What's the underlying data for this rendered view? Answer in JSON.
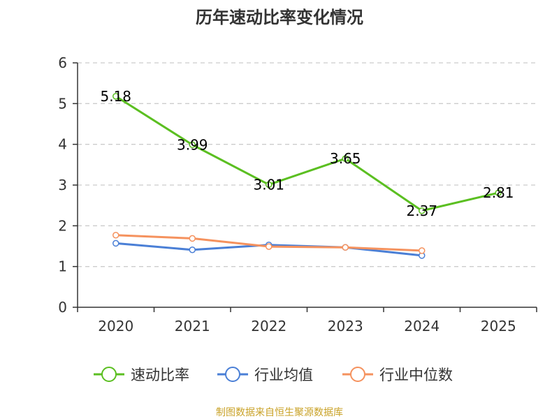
{
  "chart_data": {
    "type": "line",
    "title": "历年速动比率变化情况",
    "categories": [
      "2020",
      "2021",
      "2022",
      "2023",
      "2024",
      "2025"
    ],
    "ylim": [
      0,
      6
    ],
    "yticks": [
      0,
      1,
      2,
      3,
      4,
      5,
      6
    ],
    "grid": true,
    "legend_position": "bottom",
    "series": [
      {
        "name": "速动比率",
        "color": "#5bbf21",
        "values": [
          5.18,
          3.99,
          3.01,
          3.65,
          2.37,
          2.81
        ],
        "labels": [
          "5.18",
          "3.99",
          "3.01",
          "3.65",
          "2.37",
          "2.81"
        ]
      },
      {
        "name": "行业均值",
        "color": "#4a7fd6",
        "values": [
          1.57,
          1.41,
          1.53,
          1.47,
          1.27,
          null
        ]
      },
      {
        "name": "行业中位数",
        "color": "#f5925e",
        "values": [
          1.77,
          1.69,
          1.49,
          1.47,
          1.39,
          null
        ]
      }
    ],
    "source": "制图数据来自恒生聚源数据库"
  }
}
